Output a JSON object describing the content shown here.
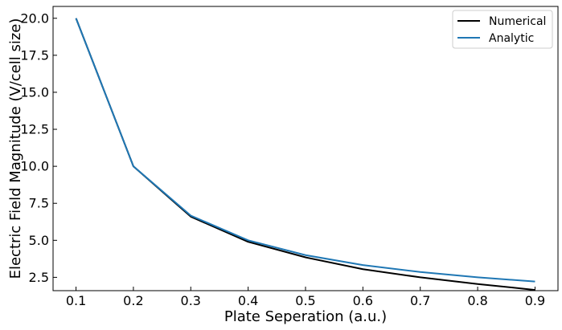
{
  "chart_data": {
    "type": "line",
    "xlabel": "Plate Seperation (a.u.)",
    "ylabel": "Electric Field Magnitude (V/cell size)",
    "x": [
      0.1,
      0.2,
      0.3,
      0.4,
      0.5,
      0.6,
      0.7,
      0.8,
      0.9
    ],
    "xlim": [
      0.06,
      0.94
    ],
    "ylim": [
      1.6,
      20.8
    ],
    "xticks": [
      0.1,
      0.2,
      0.3,
      0.4,
      0.5,
      0.6,
      0.7,
      0.8,
      0.9
    ],
    "xtick_labels": [
      "0.1",
      "0.2",
      "0.3",
      "0.4",
      "0.5",
      "0.6",
      "0.7",
      "0.8",
      "0.9"
    ],
    "yticks": [
      2.5,
      5.0,
      7.5,
      10.0,
      12.5,
      15.0,
      17.5,
      20.0
    ],
    "ytick_labels": [
      "2.5",
      "5.0",
      "7.5",
      "10.0",
      "12.5",
      "15.0",
      "17.5",
      "20.0"
    ],
    "grid": false,
    "legend_position": "top-right",
    "series": [
      {
        "name": "Numerical",
        "color": "#000000",
        "values": [
          20.0,
          10.0,
          6.6,
          4.9,
          3.85,
          3.05,
          2.5,
          2.05,
          1.65
        ]
      },
      {
        "name": "Analytic",
        "color": "#1f77b4",
        "values": [
          20.0,
          10.0,
          6.67,
          5.0,
          4.0,
          3.33,
          2.86,
          2.5,
          2.22
        ]
      }
    ]
  }
}
